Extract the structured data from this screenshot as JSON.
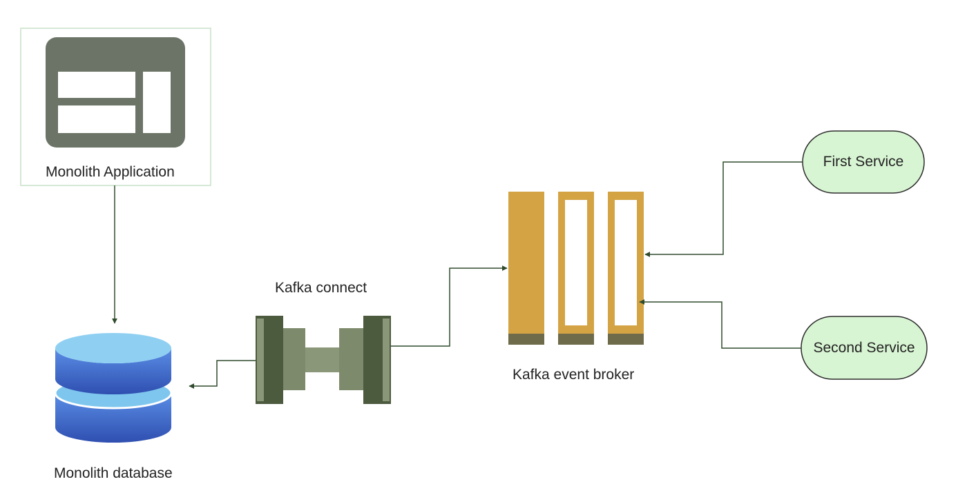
{
  "nodes": {
    "monolith_app": {
      "label": "Monolith Application"
    },
    "monolith_db": {
      "label": "Monolith database"
    },
    "kafka_connect": {
      "label": "Kafka connect"
    },
    "kafka_broker": {
      "label": "Kafka event broker"
    },
    "first_service": {
      "label": "First Service"
    },
    "second_service": {
      "label": "Second Service"
    }
  },
  "colors": {
    "app_icon": "#6b7466",
    "app_panel_border": "#c9e0c9",
    "db_top": "#8fd0f2",
    "db_body": "#3b5fc4",
    "connect_dark": "#4c5a3e",
    "connect_light": "#8a9778",
    "broker": "#d4a444",
    "broker_foot": "#6e6b4a",
    "service_fill": "#d8f5d3",
    "service_stroke": "#2b2b2b",
    "edge": "#2f4a2c"
  },
  "edges": [
    {
      "from": "monolith_app",
      "to": "monolith_db"
    },
    {
      "from": "kafka_connect",
      "to": "monolith_db"
    },
    {
      "from": "kafka_connect",
      "to": "kafka_broker"
    },
    {
      "from": "first_service",
      "to": "kafka_broker"
    },
    {
      "from": "second_service",
      "to": "kafka_broker"
    }
  ]
}
